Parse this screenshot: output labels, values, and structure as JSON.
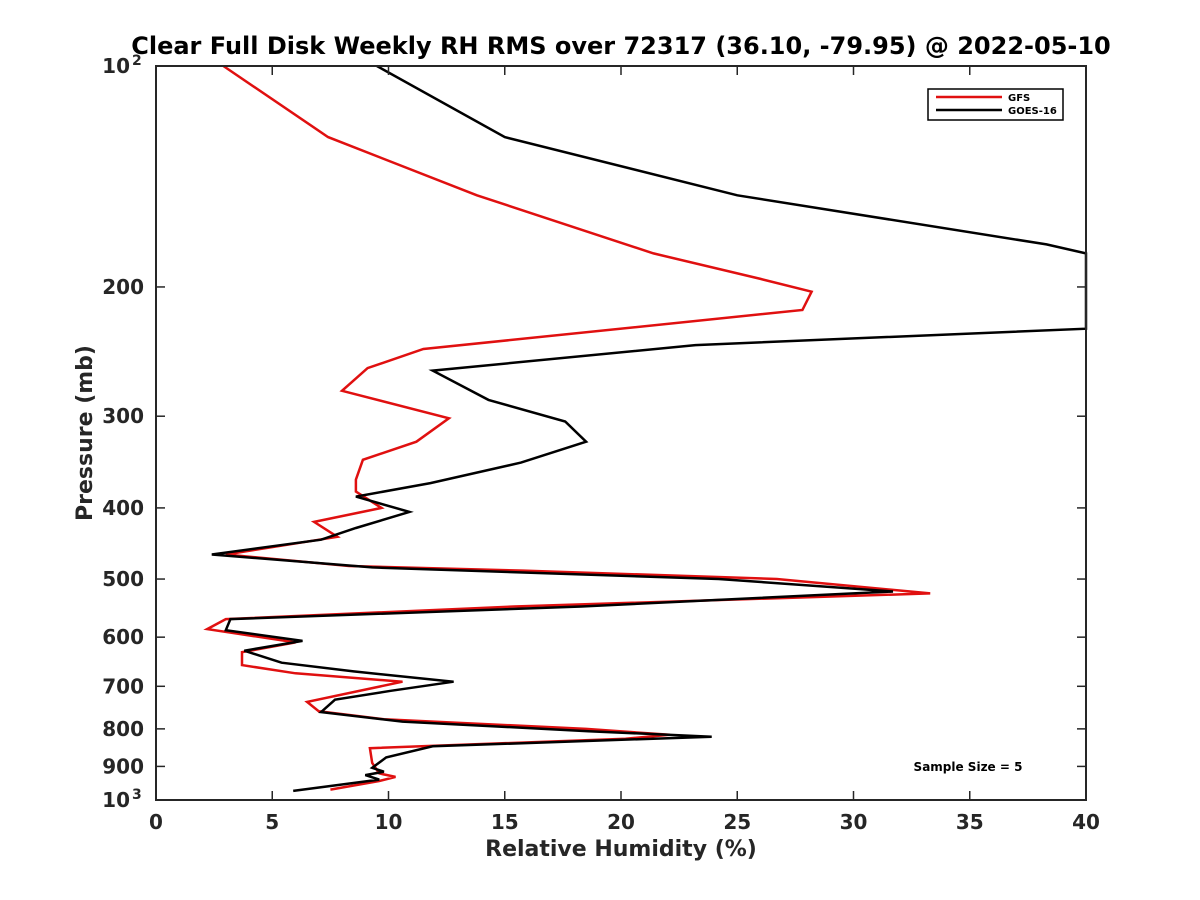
{
  "chart_data": {
    "type": "line",
    "title": "Clear Full Disk Weekly RH RMS over 72317 (36.10, -79.95) @ 2022-05-10",
    "xlabel": "Relative Humidity (%)",
    "ylabel": "Pressure (mb)",
    "xlim": [
      0,
      40
    ],
    "ylim": [
      100,
      1000
    ],
    "y_scale": "log",
    "y_reversed": true,
    "grid": false,
    "legend_position": "top-right",
    "annotation": "Sample Size = 5",
    "x_ticks": [
      "0",
      "5",
      "10",
      "15",
      "20",
      "25",
      "30",
      "35",
      "40"
    ],
    "y_ticks": [
      {
        "value": 100,
        "base": "10",
        "exp": "2"
      },
      {
        "value": 200,
        "label": "200"
      },
      {
        "value": 300,
        "label": "300"
      },
      {
        "value": 400,
        "label": "400"
      },
      {
        "value": 500,
        "label": "500"
      },
      {
        "value": 600,
        "label": "600"
      },
      {
        "value": 700,
        "label": "700"
      },
      {
        "value": 800,
        "label": "800"
      },
      {
        "value": 900,
        "label": "900"
      },
      {
        "value": 1000,
        "base": "10",
        "exp": "3"
      }
    ],
    "series": [
      {
        "name": "GFS",
        "color": "#e01010",
        "points": [
          [
            2.9,
            100
          ],
          [
            7.4,
            125
          ],
          [
            13.8,
            150
          ],
          [
            21.4,
            180
          ],
          [
            26.0,
            195
          ],
          [
            28.2,
            203
          ],
          [
            27.8,
            215
          ],
          [
            11.5,
            243
          ],
          [
            9.1,
            258
          ],
          [
            8.0,
            277
          ],
          [
            12.6,
            302
          ],
          [
            11.2,
            325
          ],
          [
            8.9,
            344
          ],
          [
            8.6,
            366
          ],
          [
            8.6,
            380
          ],
          [
            9.7,
            400
          ],
          [
            6.8,
            418
          ],
          [
            7.8,
            438
          ],
          [
            3.0,
            463
          ],
          [
            8.3,
            480
          ],
          [
            15.8,
            487
          ],
          [
            26.7,
            500
          ],
          [
            33.3,
            523
          ],
          [
            15.4,
            545
          ],
          [
            3.0,
            567
          ],
          [
            2.2,
            585
          ],
          [
            6.0,
            610
          ],
          [
            3.7,
            629
          ],
          [
            3.7,
            655
          ],
          [
            6.0,
            672
          ],
          [
            10.6,
            690
          ],
          [
            6.5,
            735
          ],
          [
            7.0,
            757
          ],
          [
            9.8,
            776
          ],
          [
            18.5,
            800
          ],
          [
            22.1,
            815
          ],
          [
            20.2,
            825
          ],
          [
            9.2,
            850
          ],
          [
            9.3,
            890
          ],
          [
            9.6,
            920
          ],
          [
            10.3,
            930
          ],
          [
            9.6,
            942
          ],
          [
            7.5,
            968
          ]
        ]
      },
      {
        "name": "GOES-16",
        "color": "#000000",
        "points": [
          [
            9.5,
            100
          ],
          [
            15.0,
            125
          ],
          [
            25.0,
            150
          ],
          [
            38.3,
            175
          ],
          [
            40.0,
            180
          ],
          [
            40.0,
            228
          ],
          [
            23.2,
            240
          ],
          [
            11.9,
            260
          ],
          [
            14.3,
            285
          ],
          [
            17.6,
            305
          ],
          [
            18.5,
            325
          ],
          [
            15.7,
            347
          ],
          [
            11.8,
            370
          ],
          [
            8.6,
            386
          ],
          [
            10.9,
            405
          ],
          [
            8.6,
            426
          ],
          [
            7.1,
            442
          ],
          [
            2.4,
            463
          ],
          [
            9.3,
            482
          ],
          [
            24.2,
            500
          ],
          [
            31.7,
            520
          ],
          [
            18.3,
            545
          ],
          [
            3.2,
            567
          ],
          [
            3.0,
            587
          ],
          [
            6.3,
            607
          ],
          [
            3.8,
            626
          ],
          [
            5.4,
            650
          ],
          [
            8.5,
            668
          ],
          [
            12.8,
            690
          ],
          [
            10.1,
            710
          ],
          [
            7.7,
            730
          ],
          [
            7.1,
            759
          ],
          [
            10.6,
            782
          ],
          [
            18.6,
            806
          ],
          [
            23.9,
            820
          ],
          [
            11.9,
            845
          ],
          [
            9.9,
            875
          ],
          [
            9.3,
            904
          ],
          [
            9.8,
            915
          ],
          [
            9.0,
            925
          ],
          [
            9.6,
            938
          ],
          [
            5.9,
            972
          ]
        ]
      }
    ]
  }
}
